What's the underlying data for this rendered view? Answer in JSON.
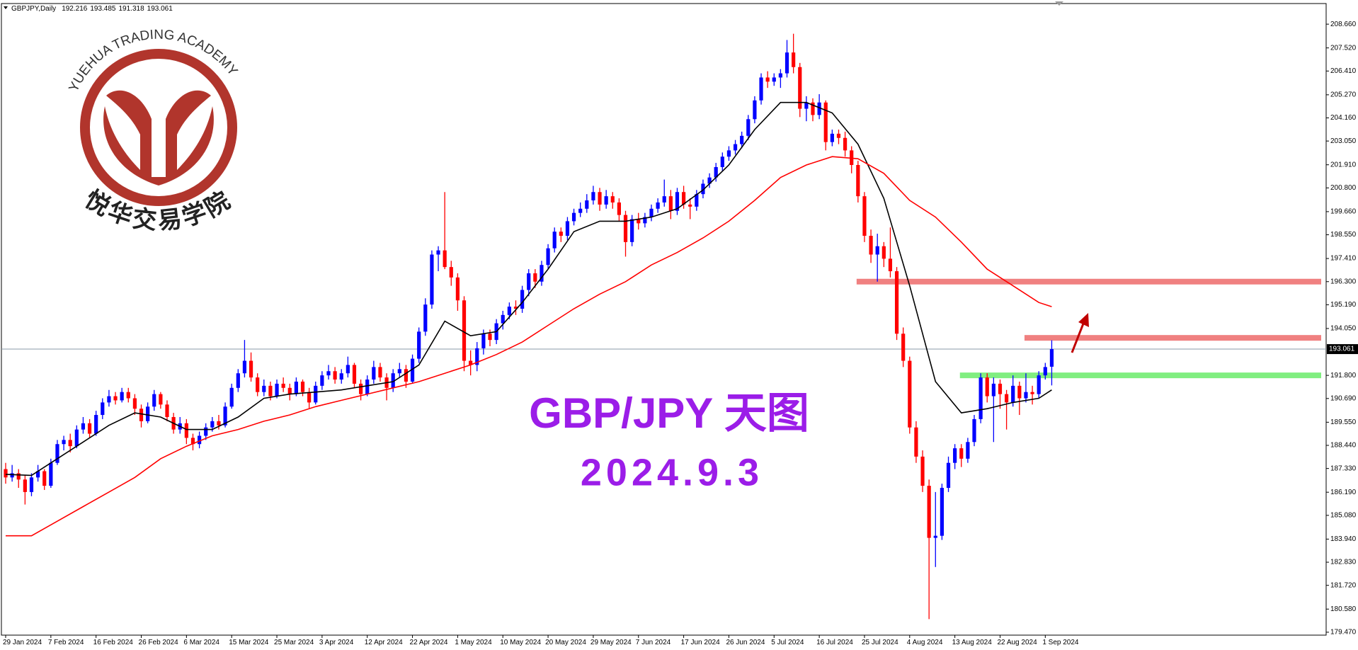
{
  "header": {
    "symbol": "GBPJPY,Daily"
  },
  "logo": {
    "name_en": "YUEHUA TRADING ACADEMY",
    "name_cn": "悦华交易学院"
  },
  "chart_data": {
    "type": "candlestick",
    "title": "GBP/JPY 天图",
    "subtitle": "2024.9.3",
    "up_color": "#0000ff",
    "down_color": "#ff0000",
    "show_last_price": true,
    "categories": [
      "29 Jan 2024",
      null,
      null,
      null,
      null,
      null,
      null,
      "7 Feb 2024",
      null,
      null,
      null,
      null,
      null,
      null,
      "16 Feb 2024",
      null,
      null,
      null,
      null,
      null,
      null,
      "26 Feb 2024",
      null,
      null,
      null,
      null,
      null,
      null,
      "6 Mar 2024",
      null,
      null,
      null,
      null,
      null,
      null,
      "15 Mar 2024",
      null,
      null,
      null,
      null,
      null,
      null,
      "25 Mar 2024",
      null,
      null,
      null,
      null,
      null,
      null,
      "3 Apr 2024",
      null,
      null,
      null,
      null,
      null,
      null,
      "12 Apr 2024",
      null,
      null,
      null,
      null,
      null,
      null,
      "22 Apr 2024",
      null,
      null,
      null,
      null,
      null,
      null,
      "1 May 2024",
      null,
      null,
      null,
      null,
      null,
      null,
      "10 May 2024",
      null,
      null,
      null,
      null,
      null,
      null,
      "20 May 2024",
      null,
      null,
      null,
      null,
      null,
      null,
      "29 May 2024",
      null,
      null,
      null,
      null,
      null,
      null,
      "7 Jun 2024",
      null,
      null,
      null,
      null,
      null,
      null,
      "17 Jun 2024",
      null,
      null,
      null,
      null,
      null,
      null,
      "26 Jun 2024",
      null,
      null,
      null,
      null,
      null,
      null,
      "5 Jul 2024",
      null,
      null,
      null,
      null,
      null,
      null,
      "16 Jul 2024",
      null,
      null,
      null,
      null,
      null,
      null,
      "25 Jul 2024",
      null,
      null,
      null,
      null,
      null,
      null,
      "4 Aug 2024",
      null,
      null,
      null,
      null,
      null,
      null,
      "13 Aug 2024",
      null,
      null,
      null,
      null,
      null,
      null,
      "22 Aug 2024",
      null,
      null,
      null,
      null,
      null,
      null,
      "1 Sep 2024",
      null
    ],
    "ohlc": [
      [
        187.3,
        187.6,
        186.6,
        186.9
      ],
      [
        186.9,
        187.5,
        186.7,
        187.1
      ],
      [
        187.1,
        187.3,
        186.4,
        186.8
      ],
      [
        186.8,
        187.0,
        185.6,
        186.2
      ],
      [
        186.2,
        187.1,
        186.0,
        186.9
      ],
      [
        186.9,
        187.5,
        186.7,
        187.2
      ],
      [
        187.2,
        187.3,
        186.3,
        186.5
      ],
      [
        186.5,
        187.8,
        186.4,
        187.6
      ],
      [
        187.6,
        188.7,
        187.5,
        188.5
      ],
      [
        188.5,
        188.9,
        188.2,
        188.7
      ],
      [
        188.7,
        189.0,
        188.1,
        188.4
      ],
      [
        188.4,
        189.4,
        188.3,
        189.2
      ],
      [
        189.2,
        189.8,
        189.0,
        189.5
      ],
      [
        189.5,
        189.7,
        188.8,
        189.0
      ],
      [
        189.0,
        190.1,
        188.9,
        189.9
      ],
      [
        189.9,
        190.7,
        189.7,
        190.5
      ],
      [
        190.5,
        191.1,
        190.3,
        190.8
      ],
      [
        190.8,
        191.0,
        190.4,
        190.6
      ],
      [
        190.6,
        191.2,
        190.5,
        191.0
      ],
      [
        191.0,
        191.2,
        190.5,
        190.7
      ],
      [
        190.7,
        190.9,
        189.9,
        190.2
      ],
      [
        190.2,
        190.4,
        189.3,
        189.6
      ],
      [
        189.6,
        190.5,
        189.5,
        190.3
      ],
      [
        190.3,
        191.1,
        190.1,
        190.9
      ],
      [
        190.9,
        191.0,
        190.2,
        190.4
      ],
      [
        190.4,
        190.6,
        189.6,
        189.8
      ],
      [
        189.8,
        190.0,
        189.0,
        189.2
      ],
      [
        189.2,
        189.8,
        189.0,
        189.5
      ],
      [
        189.5,
        189.7,
        188.5,
        188.8
      ],
      [
        188.8,
        189.0,
        188.2,
        188.5
      ],
      [
        188.5,
        189.1,
        188.3,
        188.9
      ],
      [
        188.9,
        189.5,
        188.7,
        189.3
      ],
      [
        189.3,
        189.8,
        189.1,
        189.6
      ],
      [
        189.6,
        189.9,
        189.2,
        189.4
      ],
      [
        189.4,
        190.5,
        189.3,
        190.3
      ],
      [
        190.3,
        191.4,
        190.2,
        191.2
      ],
      [
        191.2,
        192.1,
        191.0,
        191.9
      ],
      [
        191.9,
        193.5,
        191.7,
        192.5
      ],
      [
        192.5,
        192.9,
        191.5,
        191.7
      ],
      [
        191.7,
        191.9,
        190.8,
        191.0
      ],
      [
        191.0,
        191.6,
        190.8,
        191.3
      ],
      [
        191.3,
        191.5,
        190.6,
        190.8
      ],
      [
        190.8,
        191.6,
        190.7,
        191.4
      ],
      [
        191.4,
        191.7,
        191.0,
        191.2
      ],
      [
        191.2,
        191.4,
        190.6,
        190.9
      ],
      [
        190.9,
        191.7,
        190.8,
        191.5
      ],
      [
        191.5,
        191.6,
        190.8,
        191.0
      ],
      [
        191.0,
        191.2,
        190.2,
        190.5
      ],
      [
        190.5,
        191.5,
        190.4,
        191.3
      ],
      [
        191.3,
        192.0,
        191.1,
        191.8
      ],
      [
        191.8,
        192.3,
        191.6,
        192.0
      ],
      [
        192.0,
        192.2,
        191.4,
        191.6
      ],
      [
        191.6,
        192.1,
        191.4,
        191.9
      ],
      [
        191.9,
        192.7,
        191.7,
        192.3
      ],
      [
        192.3,
        192.4,
        191.2,
        191.4
      ],
      [
        191.4,
        191.6,
        190.6,
        190.9
      ],
      [
        190.9,
        191.8,
        190.8,
        191.6
      ],
      [
        191.6,
        192.5,
        191.4,
        192.2
      ],
      [
        192.2,
        192.4,
        191.5,
        191.7
      ],
      [
        191.7,
        191.9,
        190.6,
        191.2
      ],
      [
        191.2,
        192.1,
        191.0,
        191.9
      ],
      [
        191.9,
        192.4,
        191.7,
        192.1
      ],
      [
        192.1,
        192.3,
        191.2,
        191.5
      ],
      [
        191.5,
        192.8,
        191.4,
        192.6
      ],
      [
        192.6,
        194.1,
        192.4,
        193.9
      ],
      [
        193.9,
        195.5,
        193.7,
        195.2
      ],
      [
        195.2,
        197.8,
        195.0,
        197.6
      ],
      [
        197.6,
        198.0,
        196.8,
        197.8
      ],
      [
        197.8,
        200.6,
        196.9,
        197.0
      ],
      [
        197.0,
        197.3,
        196.1,
        196.5
      ],
      [
        196.5,
        196.7,
        194.9,
        195.4
      ],
      [
        195.4,
        195.6,
        192.0,
        192.5
      ],
      [
        192.5,
        193.0,
        191.8,
        192.3
      ],
      [
        192.3,
        193.4,
        192.0,
        193.1
      ],
      [
        193.1,
        194.0,
        192.8,
        193.8
      ],
      [
        193.8,
        194.0,
        193.2,
        193.5
      ],
      [
        193.5,
        194.5,
        193.3,
        194.3
      ],
      [
        194.3,
        194.9,
        194.0,
        194.7
      ],
      [
        194.7,
        195.3,
        194.5,
        195.1
      ],
      [
        195.1,
        195.4,
        194.7,
        195.0
      ],
      [
        195.0,
        196.1,
        194.8,
        195.9
      ],
      [
        195.9,
        196.9,
        195.6,
        196.7
      ],
      [
        196.7,
        196.9,
        196.0,
        196.3
      ],
      [
        196.3,
        197.3,
        196.1,
        197.1
      ],
      [
        197.1,
        198.1,
        196.9,
        197.9
      ],
      [
        197.9,
        198.9,
        197.7,
        198.7
      ],
      [
        198.7,
        198.9,
        198.2,
        198.5
      ],
      [
        198.5,
        199.4,
        198.3,
        199.2
      ],
      [
        199.2,
        199.8,
        199.0,
        199.6
      ],
      [
        199.6,
        200.1,
        199.4,
        199.8
      ],
      [
        199.8,
        200.5,
        199.6,
        200.2
      ],
      [
        200.2,
        200.9,
        200.0,
        200.6
      ],
      [
        200.6,
        200.8,
        199.7,
        200.0
      ],
      [
        200.0,
        200.7,
        199.8,
        200.4
      ],
      [
        200.4,
        200.6,
        199.8,
        200.1
      ],
      [
        200.1,
        200.3,
        199.2,
        199.5
      ],
      [
        199.5,
        199.7,
        197.5,
        198.2
      ],
      [
        198.2,
        199.5,
        198.0,
        199.3
      ],
      [
        199.3,
        199.6,
        198.8,
        199.1
      ],
      [
        199.1,
        199.6,
        198.9,
        199.4
      ],
      [
        199.4,
        200.0,
        199.2,
        199.8
      ],
      [
        199.8,
        200.3,
        199.6,
        200.1
      ],
      [
        200.1,
        201.2,
        199.9,
        200.4
      ],
      [
        200.4,
        200.7,
        199.3,
        199.7
      ],
      [
        199.7,
        200.8,
        199.5,
        200.6
      ],
      [
        200.6,
        200.9,
        199.8,
        200.0
      ],
      [
        200.0,
        200.3,
        199.3,
        199.9
      ],
      [
        199.9,
        200.7,
        199.7,
        200.5
      ],
      [
        200.5,
        201.2,
        200.3,
        201.0
      ],
      [
        201.0,
        201.5,
        200.8,
        201.3
      ],
      [
        201.3,
        202.0,
        201.1,
        201.8
      ],
      [
        201.8,
        202.5,
        201.6,
        202.3
      ],
      [
        202.3,
        202.8,
        202.1,
        202.6
      ],
      [
        202.6,
        203.1,
        202.4,
        202.9
      ],
      [
        202.9,
        203.5,
        202.7,
        203.3
      ],
      [
        203.3,
        204.3,
        203.1,
        204.1
      ],
      [
        204.1,
        205.2,
        203.9,
        205.0
      ],
      [
        205.0,
        206.3,
        204.8,
        206.1
      ],
      [
        206.1,
        206.4,
        205.6,
        205.9
      ],
      [
        205.9,
        206.3,
        205.7,
        206.1
      ],
      [
        206.1,
        206.5,
        205.6,
        206.3
      ],
      [
        206.3,
        207.9,
        206.1,
        207.3
      ],
      [
        207.3,
        208.2,
        206.3,
        206.6
      ],
      [
        206.6,
        206.8,
        204.2,
        204.6
      ],
      [
        204.6,
        205.2,
        204.0,
        204.9
      ],
      [
        204.9,
        205.1,
        204.0,
        204.3
      ],
      [
        204.3,
        205.3,
        204.1,
        204.9
      ],
      [
        204.9,
        205.0,
        202.6,
        203.0
      ],
      [
        203.0,
        203.6,
        202.8,
        203.4
      ],
      [
        203.4,
        203.6,
        202.9,
        203.2
      ],
      [
        203.2,
        203.5,
        202.3,
        202.6
      ],
      [
        202.6,
        202.8,
        201.5,
        201.9
      ],
      [
        201.9,
        202.1,
        200.1,
        200.4
      ],
      [
        200.4,
        200.6,
        198.2,
        198.5
      ],
      [
        198.5,
        198.8,
        197.2,
        197.6
      ],
      [
        197.6,
        198.6,
        196.3,
        198.0
      ],
      [
        198.0,
        198.2,
        197.0,
        197.4
      ],
      [
        197.4,
        198.9,
        196.5,
        196.8
      ],
      [
        196.8,
        197.0,
        193.5,
        193.8
      ],
      [
        193.8,
        194.1,
        192.2,
        192.5
      ],
      [
        192.5,
        192.7,
        189.0,
        189.3
      ],
      [
        189.3,
        189.6,
        187.6,
        187.9
      ],
      [
        187.9,
        188.2,
        186.2,
        186.5
      ],
      [
        186.5,
        186.8,
        180.1,
        184.0
      ],
      [
        184.0,
        186.2,
        182.6,
        184.1
      ],
      [
        184.1,
        186.6,
        183.9,
        186.4
      ],
      [
        186.4,
        187.9,
        186.2,
        187.6
      ],
      [
        187.6,
        188.5,
        187.3,
        188.3
      ],
      [
        188.3,
        188.5,
        187.4,
        187.8
      ],
      [
        187.8,
        188.8,
        187.6,
        188.6
      ],
      [
        188.6,
        189.9,
        188.4,
        189.7
      ],
      [
        189.7,
        191.9,
        189.5,
        191.7
      ],
      [
        191.7,
        191.9,
        190.5,
        190.8
      ],
      [
        190.8,
        191.7,
        188.6,
        191.4
      ],
      [
        191.4,
        191.6,
        190.2,
        190.9
      ],
      [
        190.9,
        191.1,
        189.2,
        190.5
      ],
      [
        190.5,
        191.8,
        190.3,
        191.3
      ],
      [
        191.3,
        191.5,
        189.9,
        190.7
      ],
      [
        190.7,
        191.9,
        190.5,
        191.0
      ],
      [
        191.0,
        191.3,
        190.4,
        190.9
      ],
      [
        190.9,
        192.0,
        190.7,
        191.8
      ],
      [
        191.8,
        192.4,
        191.6,
        192.2
      ],
      [
        192.216,
        193.485,
        191.318,
        193.061
      ]
    ],
    "series": [
      {
        "color": "#000000",
        "x": [
          0,
          4,
          8,
          12,
          16,
          20,
          24,
          28,
          32,
          36,
          40,
          44,
          48,
          52,
          56,
          60,
          64,
          68,
          72,
          76,
          80,
          84,
          88,
          92,
          96,
          100,
          104,
          108,
          112,
          116,
          120,
          124,
          128,
          132,
          136,
          140,
          144,
          148,
          152,
          156,
          160,
          162
        ],
        "values": [
          187.05,
          187.0,
          187.8,
          188.6,
          189.4,
          190.0,
          189.8,
          189.2,
          189.2,
          189.8,
          190.7,
          190.9,
          191.0,
          191.1,
          191.3,
          191.5,
          192.3,
          194.4,
          193.7,
          193.9,
          195.3,
          196.9,
          198.7,
          199.2,
          199.2,
          199.4,
          199.8,
          200.7,
          201.9,
          203.6,
          204.9,
          204.9,
          204.4,
          202.9,
          200.3,
          196.1,
          191.5,
          190.0,
          190.2,
          190.5,
          190.7,
          191.1
        ]
      },
      {
        "color": "#ff0000",
        "x": [
          0,
          4,
          8,
          12,
          16,
          20,
          24,
          28,
          32,
          36,
          40,
          44,
          48,
          52,
          56,
          60,
          64,
          68,
          72,
          76,
          80,
          84,
          88,
          92,
          96,
          100,
          104,
          108,
          112,
          116,
          120,
          124,
          128,
          132,
          136,
          140,
          144,
          148,
          152,
          156,
          160,
          162
        ],
        "values": [
          184.1,
          184.1,
          184.8,
          185.5,
          186.2,
          186.9,
          187.8,
          188.4,
          188.9,
          189.2,
          189.6,
          189.9,
          190.3,
          190.6,
          190.9,
          191.2,
          191.5,
          191.9,
          192.3,
          192.8,
          193.4,
          194.2,
          195.0,
          195.7,
          196.3,
          197.1,
          197.7,
          198.4,
          199.2,
          200.2,
          201.3,
          201.9,
          202.3,
          202.2,
          201.5,
          200.2,
          199.4,
          198.2,
          196.9,
          196.1,
          195.3,
          195.1
        ]
      }
    ],
    "levels": [
      {
        "value": 196.3,
        "from": 132,
        "color": "#f08080"
      },
      {
        "value": 193.6,
        "from": 158,
        "color": "#f08080"
      },
      {
        "value": 191.8,
        "from": 148,
        "color": "#80ee80"
      }
    ],
    "ylim": [
      179.33,
      209.65
    ],
    "yticks": [
      {
        "value": 208.66,
        "label": "208.660"
      },
      {
        "value": 207.52,
        "label": "207.520"
      },
      {
        "value": 206.41,
        "label": "206.410"
      },
      {
        "value": 205.27,
        "label": "205.270"
      },
      {
        "value": 204.16,
        "label": "204.160"
      },
      {
        "value": 203.05,
        "label": "203.050"
      },
      {
        "value": 201.91,
        "label": "201.910"
      },
      {
        "value": 200.8,
        "label": "200.800"
      },
      {
        "value": 199.66,
        "label": "199.660"
      },
      {
        "value": 198.55,
        "label": "198.550"
      },
      {
        "value": 197.41,
        "label": "197.410"
      },
      {
        "value": 196.3,
        "label": "196.300"
      },
      {
        "value": 195.19,
        "label": "195.190"
      },
      {
        "value": 194.05,
        "label": "194.050"
      },
      {
        "value": 191.8,
        "label": "191.800"
      },
      {
        "value": 190.69,
        "label": "190.690"
      },
      {
        "value": 189.55,
        "label": "189.550"
      },
      {
        "value": 188.44,
        "label": "188.440"
      },
      {
        "value": 187.33,
        "label": "187.330"
      },
      {
        "value": 186.19,
        "label": "186.190"
      },
      {
        "value": 185.08,
        "label": "185.080"
      },
      {
        "value": 183.94,
        "label": "183.940"
      },
      {
        "value": 182.83,
        "label": "182.830"
      },
      {
        "value": 181.72,
        "label": "181.720"
      },
      {
        "value": 180.58,
        "label": "180.580"
      },
      {
        "value": 179.47,
        "label": "179.470"
      }
    ]
  }
}
